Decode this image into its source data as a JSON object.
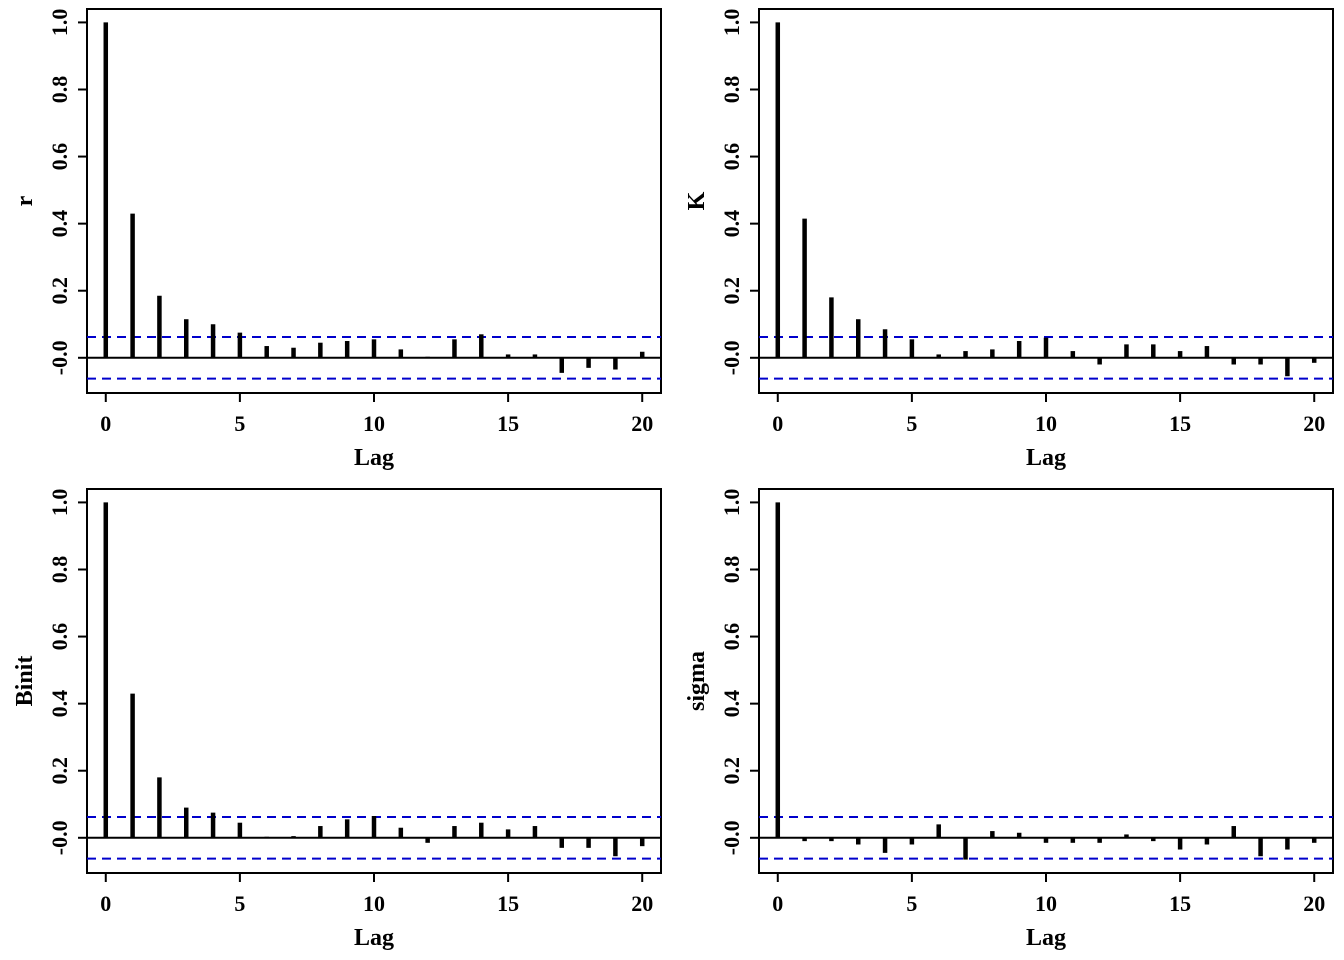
{
  "chart_data": [
    {
      "type": "bar",
      "ylabel": "r",
      "xlabel": "Lag",
      "x": [
        0,
        1,
        2,
        3,
        4,
        5,
        6,
        7,
        8,
        9,
        10,
        11,
        12,
        13,
        14,
        15,
        16,
        17,
        18,
        19,
        20
      ],
      "values": [
        1.0,
        0.43,
        0.185,
        0.115,
        0.1,
        0.075,
        0.035,
        0.03,
        0.045,
        0.05,
        0.055,
        0.025,
        0.003,
        0.055,
        0.07,
        0.01,
        0.01,
        -0.045,
        -0.03,
        -0.035,
        0.018
      ],
      "xlim": [
        -0.7,
        20.7
      ],
      "ylim": [
        -0.105,
        1.04
      ],
      "xticks": [
        "0",
        "5",
        "10",
        "15",
        "20"
      ],
      "yticks": [
        "-0.0",
        "0.2",
        "0.4",
        "0.6",
        "0.8",
        "1.0"
      ],
      "ci_bound": 0.062,
      "ci_color": "#0000cc"
    },
    {
      "type": "bar",
      "ylabel": "K",
      "xlabel": "Lag",
      "x": [
        0,
        1,
        2,
        3,
        4,
        5,
        6,
        7,
        8,
        9,
        10,
        11,
        12,
        13,
        14,
        15,
        16,
        17,
        18,
        19,
        20
      ],
      "values": [
        1.0,
        0.415,
        0.18,
        0.115,
        0.085,
        0.055,
        0.01,
        0.02,
        0.025,
        0.05,
        0.06,
        0.02,
        -0.02,
        0.04,
        0.04,
        0.02,
        0.035,
        -0.02,
        -0.02,
        -0.055,
        -0.015
      ],
      "xlim": [
        -0.7,
        20.7
      ],
      "ylim": [
        -0.105,
        1.04
      ],
      "xticks": [
        "0",
        "5",
        "10",
        "15",
        "20"
      ],
      "yticks": [
        "-0.0",
        "0.2",
        "0.4",
        "0.6",
        "0.8",
        "1.0"
      ],
      "ci_bound": 0.062,
      "ci_color": "#0000cc"
    },
    {
      "type": "bar",
      "ylabel": "Binit",
      "xlabel": "Lag",
      "x": [
        0,
        1,
        2,
        3,
        4,
        5,
        6,
        7,
        8,
        9,
        10,
        11,
        12,
        13,
        14,
        15,
        16,
        17,
        18,
        19,
        20
      ],
      "values": [
        1.0,
        0.43,
        0.18,
        0.09,
        0.075,
        0.045,
        0.003,
        0.005,
        0.035,
        0.055,
        0.065,
        0.03,
        -0.015,
        0.035,
        0.045,
        0.025,
        0.035,
        -0.03,
        -0.03,
        -0.055,
        -0.025
      ],
      "xlim": [
        -0.7,
        20.7
      ],
      "ylim": [
        -0.105,
        1.04
      ],
      "xticks": [
        "0",
        "5",
        "10",
        "15",
        "20"
      ],
      "yticks": [
        "-0.0",
        "0.2",
        "0.4",
        "0.6",
        "0.8",
        "1.0"
      ],
      "ci_bound": 0.062,
      "ci_color": "#0000cc"
    },
    {
      "type": "bar",
      "ylabel": "sigma",
      "xlabel": "Lag",
      "x": [
        0,
        1,
        2,
        3,
        4,
        5,
        6,
        7,
        8,
        9,
        10,
        11,
        12,
        13,
        14,
        15,
        16,
        17,
        18,
        19,
        20
      ],
      "values": [
        1.0,
        -0.01,
        -0.01,
        -0.02,
        -0.045,
        -0.02,
        0.04,
        -0.065,
        0.02,
        0.015,
        -0.015,
        -0.015,
        -0.015,
        0.01,
        -0.01,
        -0.035,
        -0.02,
        0.035,
        -0.055,
        -0.035,
        -0.015
      ],
      "xlim": [
        -0.7,
        20.7
      ],
      "ylim": [
        -0.105,
        1.04
      ],
      "xticks": [
        "0",
        "5",
        "10",
        "15",
        "20"
      ],
      "yticks": [
        "-0.0",
        "0.2",
        "0.4",
        "0.6",
        "0.8",
        "1.0"
      ],
      "ci_bound": 0.062,
      "ci_color": "#0000cc"
    }
  ]
}
